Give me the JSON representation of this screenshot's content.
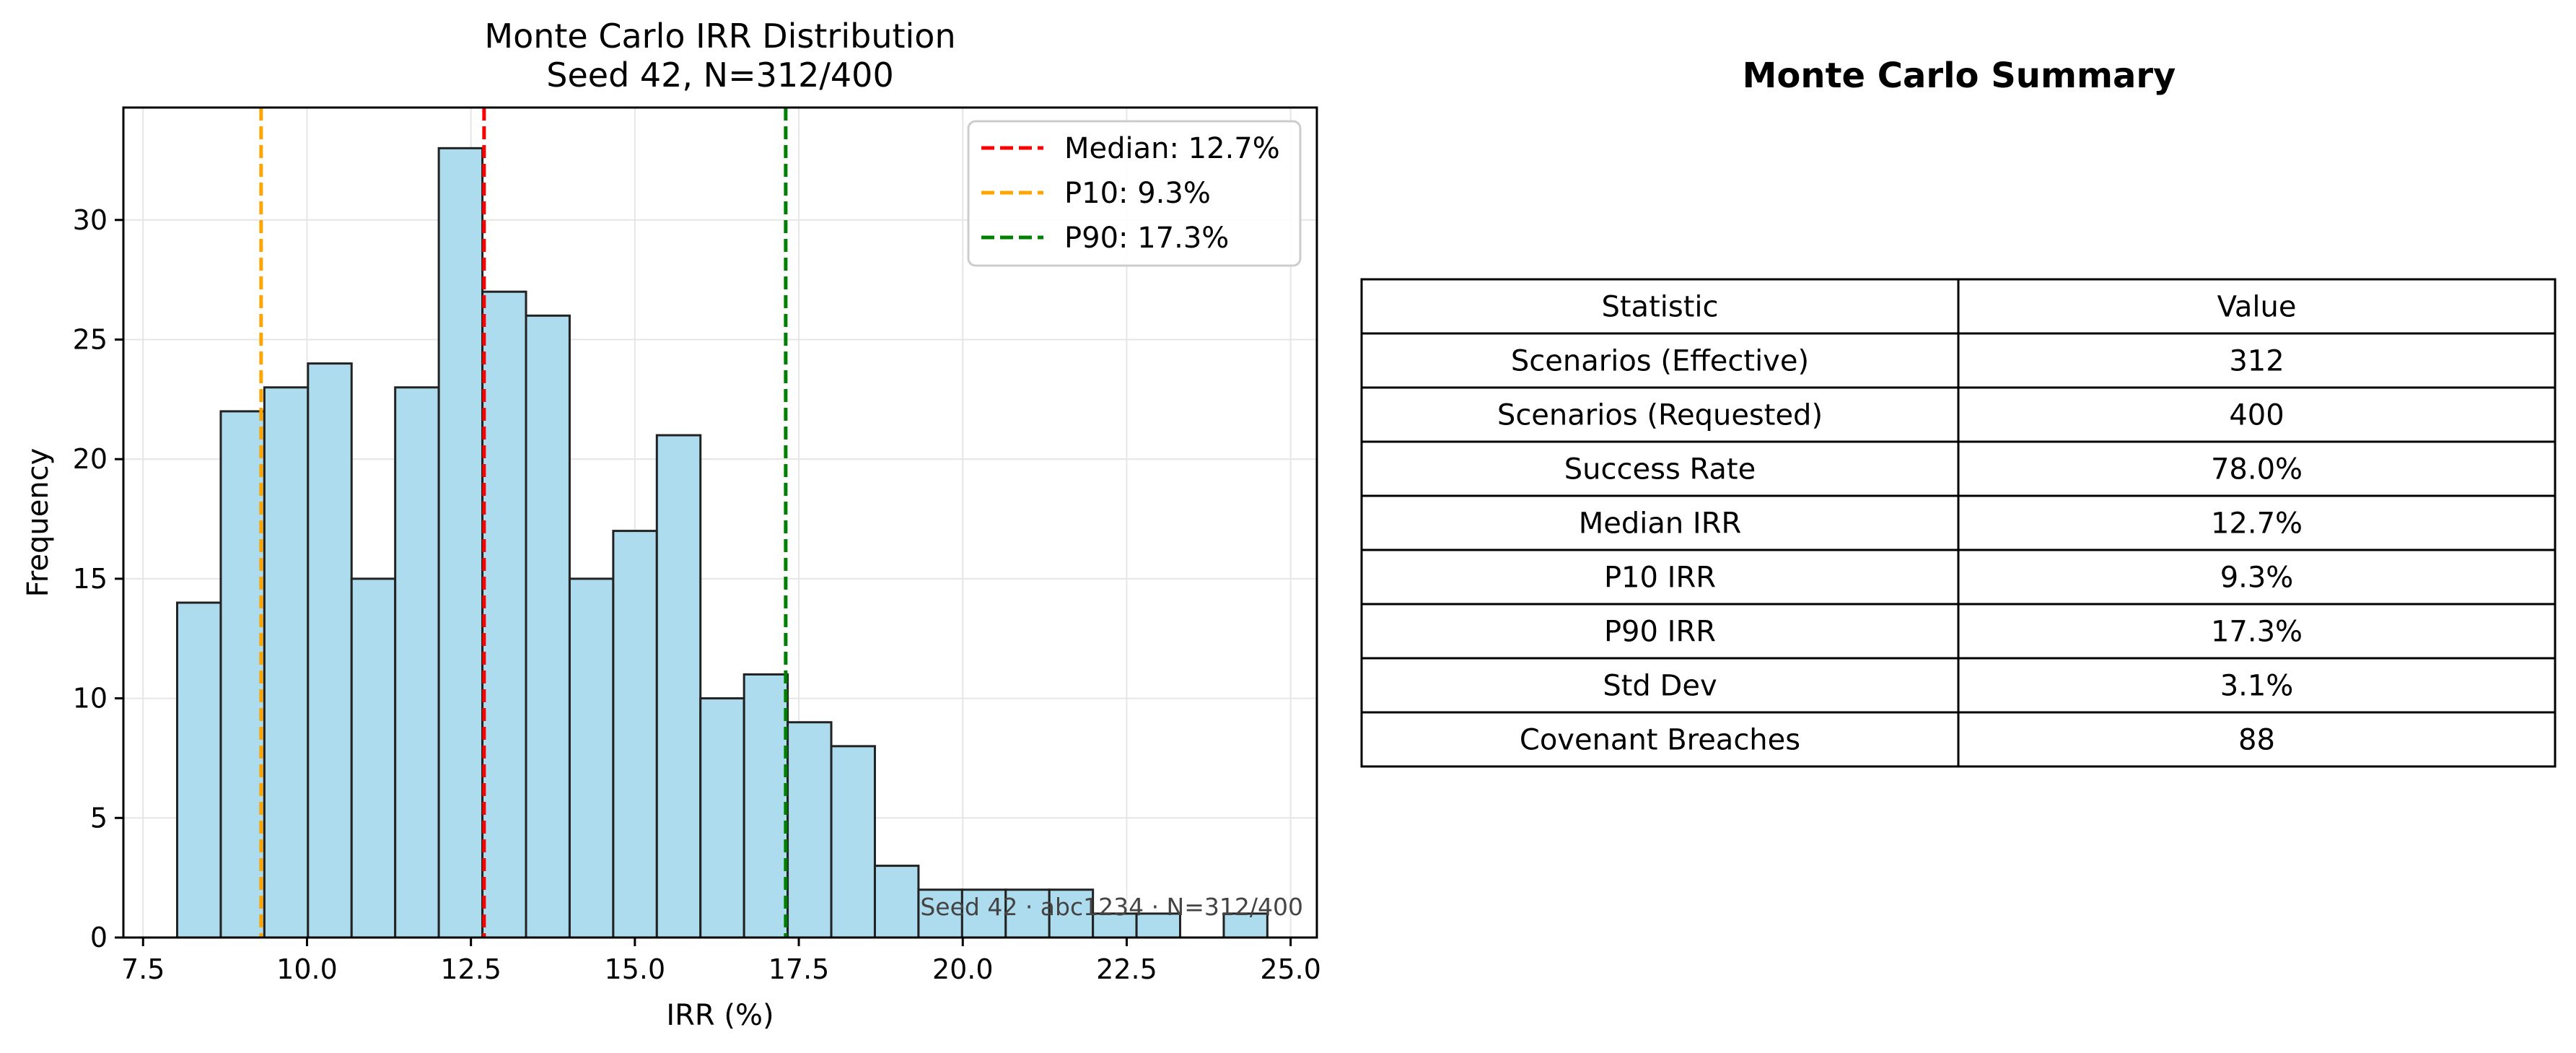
{
  "chart_data": [
    {
      "type": "histogram",
      "title": "Monte Carlo IRR Distribution",
      "subtitle": "Seed 42, N=312/400",
      "xlabel": "IRR (%)",
      "ylabel": "Frequency",
      "xlim": [
        7.2,
        25.4
      ],
      "ylim": [
        0,
        34.7
      ],
      "xticks": [
        7.5,
        10.0,
        12.5,
        15.0,
        17.5,
        20.0,
        22.5,
        25.0
      ],
      "xtick_labels": [
        "7.5",
        "10.0",
        "12.5",
        "15.0",
        "17.5",
        "20.0",
        "22.5",
        "25.0"
      ],
      "yticks": [
        0,
        5,
        10,
        15,
        20,
        25,
        30
      ],
      "ytick_labels": [
        "0",
        "5",
        "10",
        "15",
        "20",
        "25",
        "30"
      ],
      "grid": true,
      "bar_color": "#ADDCEE",
      "bar_edge_color": "#222222",
      "bins": [
        {
          "x0": 8.02,
          "x1": 8.685,
          "count": 14
        },
        {
          "x0": 8.685,
          "x1": 9.35,
          "count": 22
        },
        {
          "x0": 9.35,
          "x1": 10.015,
          "count": 23
        },
        {
          "x0": 10.015,
          "x1": 10.68,
          "count": 24
        },
        {
          "x0": 10.68,
          "x1": 11.345,
          "count": 15
        },
        {
          "x0": 11.345,
          "x1": 12.01,
          "count": 23
        },
        {
          "x0": 12.01,
          "x1": 12.675,
          "count": 33
        },
        {
          "x0": 12.675,
          "x1": 13.34,
          "count": 27
        },
        {
          "x0": 13.34,
          "x1": 14.005,
          "count": 26
        },
        {
          "x0": 14.005,
          "x1": 14.67,
          "count": 15
        },
        {
          "x0": 14.67,
          "x1": 15.335,
          "count": 17
        },
        {
          "x0": 15.335,
          "x1": 16.0,
          "count": 21
        },
        {
          "x0": 16.0,
          "x1": 16.665,
          "count": 10
        },
        {
          "x0": 16.665,
          "x1": 17.33,
          "count": 11
        },
        {
          "x0": 17.33,
          "x1": 17.995,
          "count": 9
        },
        {
          "x0": 17.995,
          "x1": 18.66,
          "count": 8
        },
        {
          "x0": 18.66,
          "x1": 19.325,
          "count": 3
        },
        {
          "x0": 19.325,
          "x1": 19.99,
          "count": 2
        },
        {
          "x0": 19.99,
          "x1": 20.655,
          "count": 2
        },
        {
          "x0": 20.655,
          "x1": 21.32,
          "count": 2
        },
        {
          "x0": 21.32,
          "x1": 21.985,
          "count": 2
        },
        {
          "x0": 21.985,
          "x1": 22.65,
          "count": 1
        },
        {
          "x0": 22.65,
          "x1": 23.315,
          "count": 1
        },
        {
          "x0": 23.315,
          "x1": 23.98,
          "count": 0
        },
        {
          "x0": 23.98,
          "x1": 24.645,
          "count": 1
        }
      ],
      "reference_lines": [
        {
          "label": "Median: 12.7%",
          "value": 12.7,
          "color": "#FF0000"
        },
        {
          "label": "P10: 9.3%",
          "value": 9.3,
          "color": "#FFA500"
        },
        {
          "label": "P90: 17.3%",
          "value": 17.3,
          "color": "#008000"
        }
      ],
      "legend_position": "top-right",
      "annotation": "Seed 42 · abc1234 · N=312/400"
    },
    {
      "type": "table",
      "title": "Monte Carlo Summary",
      "columns": [
        "Statistic",
        "Value"
      ],
      "rows": [
        [
          "Scenarios (Effective)",
          "312"
        ],
        [
          "Scenarios (Requested)",
          "400"
        ],
        [
          "Success Rate",
          "78.0%"
        ],
        [
          "Median IRR",
          "12.7%"
        ],
        [
          "P10 IRR",
          "9.3%"
        ],
        [
          "P90 IRR",
          "17.3%"
        ],
        [
          "Std Dev",
          "3.1%"
        ],
        [
          "Covenant Breaches",
          "88"
        ]
      ]
    }
  ]
}
